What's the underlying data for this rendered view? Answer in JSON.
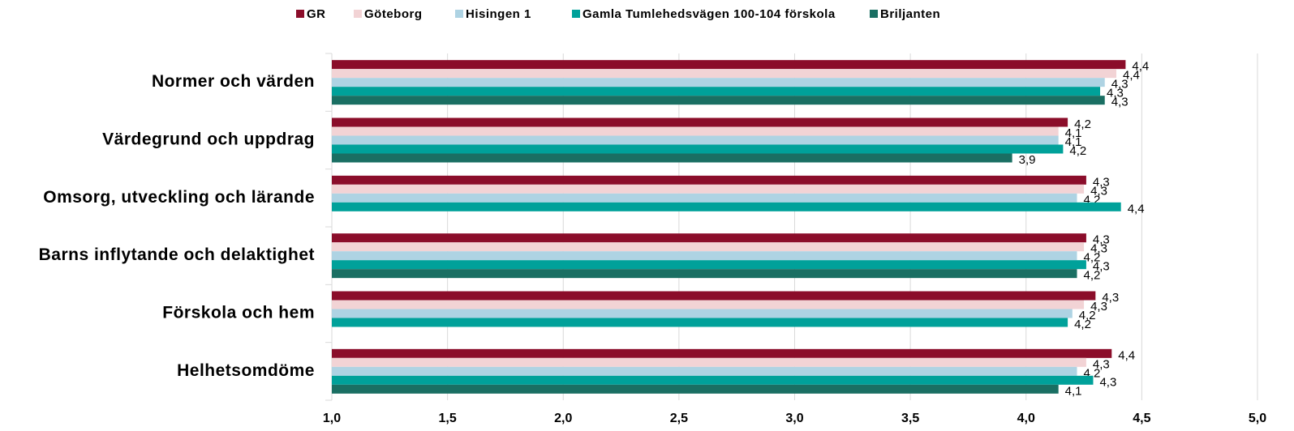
{
  "chart_data": {
    "type": "hbar",
    "categories": [
      "Normer och värden",
      "Värdegrund och uppdrag",
      "Omsorg, utveckling och lärande",
      "Barns inflytande och delaktighet",
      "Förskola och hem",
      "Helhetsomdöme"
    ],
    "series": [
      {
        "name": "GR",
        "color": "#8b0d2a",
        "values": [
          4.43,
          4.18,
          4.26,
          4.26,
          4.3,
          4.37
        ],
        "value_labels": [
          "4,4",
          "4,2",
          "4,3",
          "4,3",
          "4,3",
          "4,4"
        ]
      },
      {
        "name": "Göteborg",
        "color": "#f2d3d5",
        "values": [
          4.39,
          4.14,
          4.25,
          4.25,
          4.25,
          4.26
        ],
        "value_labels": [
          "4,4",
          "4,1",
          "4,3",
          "4,3",
          "4,3",
          "4,3"
        ]
      },
      {
        "name": "Hisingen 1",
        "color": "#aed3e3",
        "values": [
          4.34,
          4.14,
          4.22,
          4.22,
          4.2,
          4.22
        ],
        "value_labels": [
          "4,3",
          "4,1",
          "4,2",
          "4,2",
          "4,2",
          "4,2"
        ]
      },
      {
        "name": "Gamla Tumlehedsvägen 100-104 förskola",
        "color": "#00a19a",
        "values": [
          4.32,
          4.16,
          4.41,
          4.26,
          4.18,
          4.29
        ],
        "value_labels": [
          "4,3",
          "4,2",
          "4,4",
          "4,3",
          "4,2",
          "4,3"
        ]
      },
      {
        "name": "Briljanten",
        "color": "#1a6f63",
        "values": [
          4.34,
          3.94,
          null,
          4.22,
          null,
          4.14
        ],
        "value_labels": [
          "4,3",
          "3,9",
          null,
          "4,2",
          null,
          "4,1"
        ]
      }
    ],
    "xlim": [
      1.0,
      5.0
    ],
    "xticks": [
      {
        "value": 1.0,
        "label": "1,0"
      },
      {
        "value": 1.5,
        "label": "1,5"
      },
      {
        "value": 2.0,
        "label": "2,0"
      },
      {
        "value": 2.5,
        "label": "2,5"
      },
      {
        "value": 3.0,
        "label": "3,0"
      },
      {
        "value": 3.5,
        "label": "3,5"
      },
      {
        "value": 4.0,
        "label": "4,0"
      },
      {
        "value": 4.5,
        "label": "4,5"
      },
      {
        "value": 5.0,
        "label": "5,0"
      }
    ],
    "grid": true,
    "legend": "top"
  }
}
